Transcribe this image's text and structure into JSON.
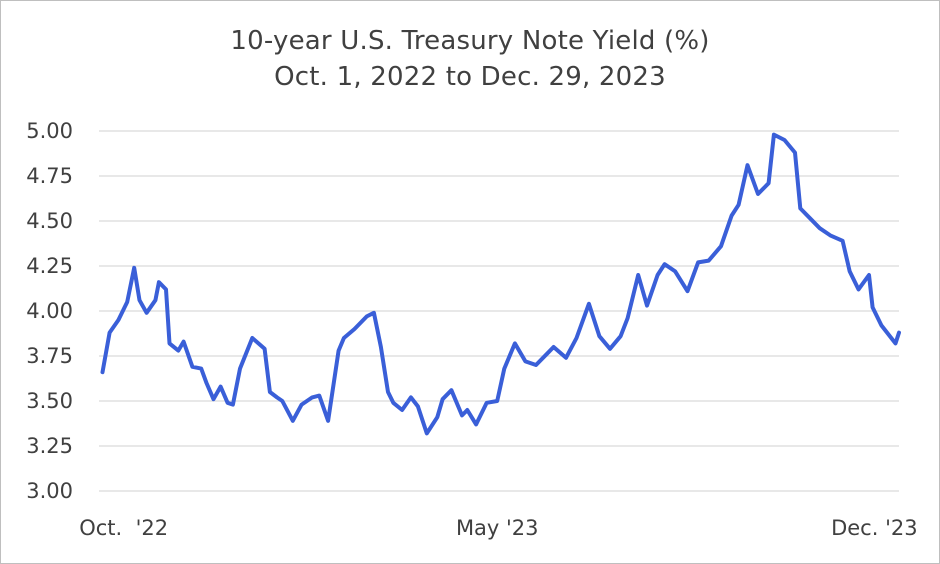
{
  "chart_data": {
    "type": "line",
    "title": "10-year U.S. Treasury Note Yield (%)",
    "subtitle": "Oct. 1, 2022 to Dec. 29, 2023",
    "xlabel": "",
    "ylabel": "",
    "ylim": [
      3.0,
      5.0
    ],
    "xlim": [
      "2022-10-01",
      "2023-12-29"
    ],
    "yticks": [
      3.0,
      3.25,
      3.5,
      3.75,
      4.0,
      4.25,
      4.5,
      4.75,
      5.0
    ],
    "ytick_labels": [
      "3.00",
      "3.25",
      "3.50",
      "3.75",
      "4.00",
      "4.25",
      "4.50",
      "4.75",
      "5.00"
    ],
    "xtick_labels": [
      {
        "date": "2022-10-15",
        "label": "Oct.  '22"
      },
      {
        "date": "2023-05-15",
        "label": "May '23"
      },
      {
        "date": "2023-12-15",
        "label": "Dec. '23"
      }
    ],
    "grid": "horizontal",
    "legend": "none",
    "line_color": "#3a5fd8",
    "series": [
      {
        "x": [
          "2022-10-03",
          "2022-10-07",
          "2022-10-12",
          "2022-10-17",
          "2022-10-21",
          "2022-10-24",
          "2022-10-28",
          "2022-11-02",
          "2022-11-04",
          "2022-11-08",
          "2022-11-10",
          "2022-11-15",
          "2022-11-18",
          "2022-11-23",
          "2022-11-28",
          "2022-12-01",
          "2022-12-05",
          "2022-12-09",
          "2022-12-13",
          "2022-12-16",
          "2022-12-20",
          "2022-12-27",
          "2023-01-03",
          "2023-01-06",
          "2023-01-10",
          "2023-01-13",
          "2023-01-19",
          "2023-01-24",
          "2023-01-30",
          "2023-02-03",
          "2023-02-08",
          "2023-02-14",
          "2023-02-17",
          "2023-02-23",
          "2023-03-02",
          "2023-03-06",
          "2023-03-10",
          "2023-03-14",
          "2023-03-17",
          "2023-03-22",
          "2023-03-27",
          "2023-03-31",
          "2023-04-05",
          "2023-04-11",
          "2023-04-14",
          "2023-04-19",
          "2023-04-25",
          "2023-04-28",
          "2023-05-03",
          "2023-05-09",
          "2023-05-15",
          "2023-05-19",
          "2023-05-25",
          "2023-05-31",
          "2023-06-06",
          "2023-06-12",
          "2023-06-16",
          "2023-06-23",
          "2023-06-29",
          "2023-07-06",
          "2023-07-12",
          "2023-07-18",
          "2023-07-24",
          "2023-07-28",
          "2023-08-03",
          "2023-08-08",
          "2023-08-14",
          "2023-08-18",
          "2023-08-24",
          "2023-08-31",
          "2023-09-06",
          "2023-09-12",
          "2023-09-19",
          "2023-09-25",
          "2023-09-29",
          "2023-10-04",
          "2023-10-10",
          "2023-10-16",
          "2023-10-19",
          "2023-10-25",
          "2023-10-31",
          "2023-11-03",
          "2023-11-09",
          "2023-11-14",
          "2023-11-20",
          "2023-11-27",
          "2023-12-01",
          "2023-12-06",
          "2023-12-12",
          "2023-12-14",
          "2023-12-19",
          "2023-12-27",
          "2023-12-29"
        ],
        "values": [
          3.66,
          3.88,
          3.95,
          4.05,
          4.24,
          4.06,
          3.99,
          4.06,
          4.16,
          4.12,
          3.82,
          3.78,
          3.83,
          3.69,
          3.68,
          3.6,
          3.51,
          3.58,
          3.49,
          3.48,
          3.68,
          3.85,
          3.79,
          3.55,
          3.52,
          3.5,
          3.39,
          3.48,
          3.52,
          3.53,
          3.39,
          3.78,
          3.85,
          3.9,
          3.97,
          3.99,
          3.8,
          3.55,
          3.49,
          3.45,
          3.52,
          3.47,
          3.32,
          3.41,
          3.51,
          3.56,
          3.42,
          3.45,
          3.37,
          3.49,
          3.5,
          3.68,
          3.82,
          3.72,
          3.7,
          3.76,
          3.8,
          3.74,
          3.85,
          4.04,
          3.86,
          3.79,
          3.86,
          3.96,
          4.2,
          4.03,
          4.2,
          4.26,
          4.22,
          4.11,
          4.27,
          4.28,
          4.36,
          4.53,
          4.59,
          4.81,
          4.65,
          4.71,
          4.98,
          4.95,
          4.88,
          4.57,
          4.51,
          4.46,
          4.42,
          4.39,
          4.22,
          4.12,
          4.2,
          4.02,
          3.92,
          3.82,
          3.88
        ]
      }
    ]
  }
}
